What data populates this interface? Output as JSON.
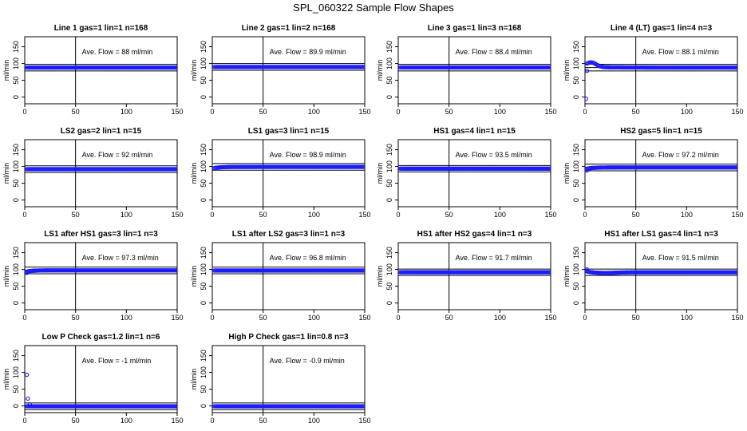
{
  "figure": {
    "title": "SPL_060322  Sample Flow Shapes",
    "colors": {
      "points": "#1a1aff",
      "axes": "#000000",
      "background": "#ffffff"
    }
  },
  "chart_data": [
    {
      "type": "scatter",
      "title": "Line 1 gas=1 lin=1 n=168",
      "xlim": [
        0,
        150
      ],
      "ylim": [
        -20,
        180
      ],
      "xticks": [
        0,
        50,
        100,
        150
      ],
      "yticks": [
        0,
        50,
        100,
        150
      ],
      "ylabel": "ml/min",
      "annotation": "Ave. Flow =  88  ml/min",
      "hlines": [
        88,
        78,
        98
      ],
      "vline": 50,
      "series": [
        {
          "x": [
            2,
            150
          ],
          "y": [
            88,
            88
          ],
          "shape": "flat",
          "start_points": []
        }
      ]
    },
    {
      "type": "scatter",
      "title": "Line 2 gas=1 lin=2 n=168",
      "xlim": [
        0,
        150
      ],
      "ylim": [
        -20,
        180
      ],
      "xticks": [
        0,
        50,
        100,
        150
      ],
      "yticks": [
        0,
        50,
        100,
        150
      ],
      "ylabel": "ml/min",
      "annotation": "Ave. Flow =  89.9  ml/min",
      "hlines": [
        89.9,
        80,
        100
      ],
      "vline": 50,
      "series": [
        {
          "x": [
            2,
            150
          ],
          "y": [
            89.9,
            89.9
          ],
          "shape": "flat",
          "start_points": []
        }
      ]
    },
    {
      "type": "scatter",
      "title": "Line 3 gas=1 lin=3 n=168",
      "xlim": [
        0,
        150
      ],
      "ylim": [
        -20,
        180
      ],
      "xticks": [
        0,
        50,
        100,
        150
      ],
      "yticks": [
        0,
        50,
        100,
        150
      ],
      "ylabel": "ml/min",
      "annotation": "Ave. Flow =  88.4  ml/min",
      "hlines": [
        88.4,
        78,
        98
      ],
      "vline": 50,
      "series": [
        {
          "x": [
            2,
            150
          ],
          "y": [
            88.4,
            88.4
          ],
          "shape": "flat",
          "start_points": []
        }
      ]
    },
    {
      "type": "scatter",
      "title": "Line 4 (LT) gas=1 lin=4 n=3",
      "xlim": [
        0,
        150
      ],
      "ylim": [
        -20,
        180
      ],
      "xticks": [
        0,
        50,
        100,
        150
      ],
      "yticks": [
        0,
        50,
        100,
        150
      ],
      "ylabel": "ml/min",
      "annotation": "Ave. Flow =  88.1  ml/min",
      "hlines": [
        88.1,
        78,
        98
      ],
      "vline": 50,
      "series": [
        {
          "x": [
            2,
            150
          ],
          "y": [
            88,
            88
          ],
          "shape": "hump",
          "start_points": [
            [
              1,
              -5
            ],
            [
              2,
              78
            ]
          ]
        }
      ]
    },
    {
      "type": "scatter",
      "title": "LS2 gas=2 lin=1 n=15",
      "xlim": [
        0,
        150
      ],
      "ylim": [
        -20,
        180
      ],
      "xticks": [
        0,
        50,
        100,
        150
      ],
      "yticks": [
        0,
        50,
        100,
        150
      ],
      "ylabel": "ml/min",
      "annotation": "Ave. Flow =  92  ml/min",
      "hlines": [
        92,
        82,
        102
      ],
      "vline": 50,
      "series": [
        {
          "x": [
            2,
            150
          ],
          "y": [
            92,
            92
          ],
          "shape": "flat",
          "start_points": []
        }
      ]
    },
    {
      "type": "scatter",
      "title": "LS1 gas=3 lin=1 n=15",
      "xlim": [
        0,
        150
      ],
      "ylim": [
        -20,
        180
      ],
      "xticks": [
        0,
        50,
        100,
        150
      ],
      "yticks": [
        0,
        50,
        100,
        150
      ],
      "ylabel": "ml/min",
      "annotation": "Ave. Flow =  98.9  ml/min",
      "hlines": [
        98.9,
        89,
        109
      ],
      "vline": 50,
      "series": [
        {
          "x": [
            2,
            150
          ],
          "y": [
            98.9,
            98.9
          ],
          "shape": "ramp",
          "start_points": []
        }
      ]
    },
    {
      "type": "scatter",
      "title": "HS1 gas=4 lin=1 n=15",
      "xlim": [
        0,
        150
      ],
      "ylim": [
        -20,
        180
      ],
      "xticks": [
        0,
        50,
        100,
        150
      ],
      "yticks": [
        0,
        50,
        100,
        150
      ],
      "ylabel": "ml/min",
      "annotation": "Ave. Flow =  93.5  ml/min",
      "hlines": [
        93.5,
        84,
        103
      ],
      "vline": 50,
      "series": [
        {
          "x": [
            2,
            150
          ],
          "y": [
            93.5,
            93.5
          ],
          "shape": "flat",
          "start_points": []
        }
      ]
    },
    {
      "type": "scatter",
      "title": "HS2 gas=5 lin=1 n=15",
      "xlim": [
        0,
        150
      ],
      "ylim": [
        -20,
        180
      ],
      "xticks": [
        0,
        50,
        100,
        150
      ],
      "yticks": [
        0,
        50,
        100,
        150
      ],
      "ylabel": "ml/min",
      "annotation": "Ave. Flow =  97.2  ml/min",
      "hlines": [
        97.2,
        87,
        107
      ],
      "vline": 50,
      "series": [
        {
          "x": [
            2,
            150
          ],
          "y": [
            97.2,
            97.2
          ],
          "shape": "ramp",
          "start_points": [
            [
              2,
              88
            ]
          ]
        }
      ]
    },
    {
      "type": "scatter",
      "title": "LS1 after HS1 gas=3 lin=1 n=3",
      "xlim": [
        0,
        150
      ],
      "ylim": [
        -20,
        180
      ],
      "xticks": [
        0,
        50,
        100,
        150
      ],
      "yticks": [
        0,
        50,
        100,
        150
      ],
      "ylabel": "ml/min",
      "annotation": "Ave. Flow =  97.3  ml/min",
      "hlines": [
        97.3,
        87,
        107
      ],
      "vline": 50,
      "series": [
        {
          "x": [
            2,
            150
          ],
          "y": [
            97.3,
            97.3
          ],
          "shape": "ramp",
          "start_points": [
            [
              2,
              90
            ]
          ]
        }
      ]
    },
    {
      "type": "scatter",
      "title": "LS1 after LS2 gas=3 lin=1 n=3",
      "xlim": [
        0,
        150
      ],
      "ylim": [
        -20,
        180
      ],
      "xticks": [
        0,
        50,
        100,
        150
      ],
      "yticks": [
        0,
        50,
        100,
        150
      ],
      "ylabel": "ml/min",
      "annotation": "Ave. Flow =  96.8  ml/min",
      "hlines": [
        96.8,
        87,
        107
      ],
      "vline": 50,
      "series": [
        {
          "x": [
            2,
            150
          ],
          "y": [
            96.8,
            96.8
          ],
          "shape": "flat",
          "start_points": []
        }
      ]
    },
    {
      "type": "scatter",
      "title": "HS1 after HS2 gas=4 lin=1 n=3",
      "xlim": [
        0,
        150
      ],
      "ylim": [
        -20,
        180
      ],
      "xticks": [
        0,
        50,
        100,
        150
      ],
      "yticks": [
        0,
        50,
        100,
        150
      ],
      "ylabel": "ml/min",
      "annotation": "Ave. Flow =  91.7  ml/min",
      "hlines": [
        91.7,
        82,
        101
      ],
      "vline": 50,
      "series": [
        {
          "x": [
            2,
            150
          ],
          "y": [
            91.7,
            91.7
          ],
          "shape": "flat",
          "start_points": []
        }
      ]
    },
    {
      "type": "scatter",
      "title": "HS1 after LS1 gas=4 lin=1 n=3",
      "xlim": [
        0,
        150
      ],
      "ylim": [
        -20,
        180
      ],
      "xticks": [
        0,
        50,
        100,
        150
      ],
      "yticks": [
        0,
        50,
        100,
        150
      ],
      "ylabel": "ml/min",
      "annotation": "Ave. Flow =  91.5  ml/min",
      "hlines": [
        91.5,
        82,
        101
      ],
      "vline": 50,
      "series": [
        {
          "x": [
            2,
            150
          ],
          "y": [
            91.5,
            91.5
          ],
          "shape": "droop",
          "start_points": [
            [
              2,
              100
            ]
          ]
        }
      ]
    },
    {
      "type": "scatter",
      "title": "Low P Check gas=1.2 lin=1 n=6",
      "xlim": [
        0,
        150
      ],
      "ylim": [
        -20,
        180
      ],
      "xticks": [
        0,
        50,
        100,
        150
      ],
      "yticks": [
        0,
        50,
        100,
        150
      ],
      "ylabel": "ml/min",
      "annotation": "Ave. Flow =  -1  ml/min",
      "hlines": [
        -1,
        9,
        -11
      ],
      "vline": 50,
      "series": [
        {
          "x": [
            2,
            150
          ],
          "y": [
            -1,
            -1
          ],
          "shape": "flat",
          "start_points": [
            [
              2,
              93
            ],
            [
              3,
              22
            ],
            [
              5,
              5
            ]
          ]
        }
      ]
    },
    {
      "type": "scatter",
      "title": "High P Check gas=1 lin=0.8 n=3",
      "xlim": [
        0,
        150
      ],
      "ylim": [
        -20,
        180
      ],
      "xticks": [
        0,
        50,
        100,
        150
      ],
      "yticks": [
        0,
        50,
        100,
        150
      ],
      "ylabel": "ml/min",
      "annotation": "Ave. Flow =  -0.9  ml/min",
      "hlines": [
        -0.9,
        9,
        -11
      ],
      "vline": 50,
      "series": [
        {
          "x": [
            2,
            150
          ],
          "y": [
            -0.9,
            -0.9
          ],
          "shape": "flat",
          "start_points": []
        }
      ]
    }
  ]
}
